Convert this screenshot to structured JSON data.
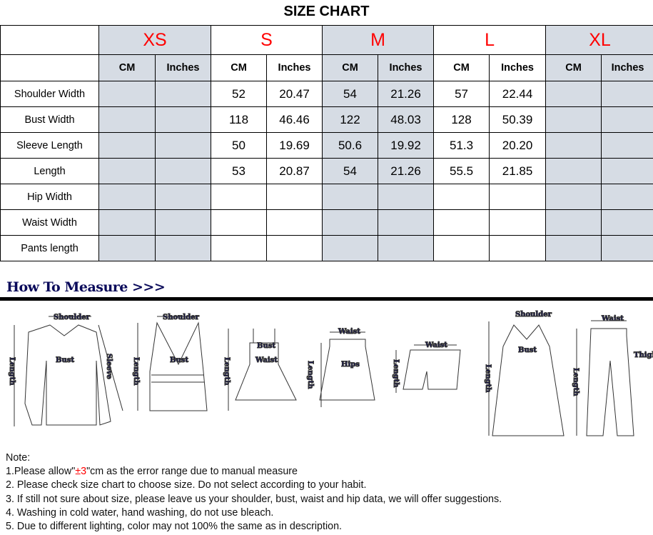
{
  "title": "SIZE CHART",
  "sizes": [
    "XS",
    "S",
    "M",
    "L",
    "XL"
  ],
  "units": {
    "cm": "CM",
    "in": "Inches"
  },
  "rows": [
    {
      "label": "Shoulder Width",
      "values": [
        "",
        "",
        "52",
        "20.47",
        "54",
        "21.26",
        "57",
        "22.44",
        "",
        ""
      ]
    },
    {
      "label": "Bust Width",
      "values": [
        "",
        "",
        "118",
        "46.46",
        "122",
        "48.03",
        "128",
        "50.39",
        "",
        ""
      ]
    },
    {
      "label": "Sleeve Length",
      "values": [
        "",
        "",
        "50",
        "19.69",
        "50.6",
        "19.92",
        "51.3",
        "20.20",
        "",
        ""
      ]
    },
    {
      "label": "Length",
      "values": [
        "",
        "",
        "53",
        "20.87",
        "54",
        "21.26",
        "55.5",
        "21.85",
        "",
        ""
      ]
    },
    {
      "label": "Hip Width",
      "values": [
        "",
        "",
        "",
        "",
        "",
        "",
        "",
        "",
        "",
        ""
      ]
    },
    {
      "label": "Waist Width",
      "values": [
        "",
        "",
        "",
        "",
        "",
        "",
        "",
        "",
        "",
        ""
      ]
    },
    {
      "label": "Pants length",
      "values": [
        "",
        "",
        "",
        "",
        "",
        "",
        "",
        "",
        "",
        ""
      ]
    }
  ],
  "how_to_measure": "How To Measure >>>",
  "diagram_labels": {
    "shoulder": "Shoulder",
    "bust": "Bust",
    "sleeve": "Sleeve",
    "length": "Length",
    "waist": "Waist",
    "hips": "Hips",
    "thigh": "Thigh"
  },
  "notes": {
    "heading": "Note:",
    "n1_pre": "1.Please allow\"",
    "n1_red": "±3",
    "n1_post": "\"cm as the error range due to manual measure",
    "n2": "2. Please check size chart to choose size. Do not select according to your habit.",
    "n3": "3. If still not sure about size, please leave us your shoulder, bust, waist and hip data, we will offer suggestions.",
    "n4": "4. Washing in cold water, hand washing, do not use bleach.",
    "n5": "5. Due to different lighting, color may not 100% the same as in description."
  },
  "colors": {
    "size_label": "#ff0000",
    "shaded_column": "#d6dce4",
    "diagram_text": "#14145a"
  }
}
